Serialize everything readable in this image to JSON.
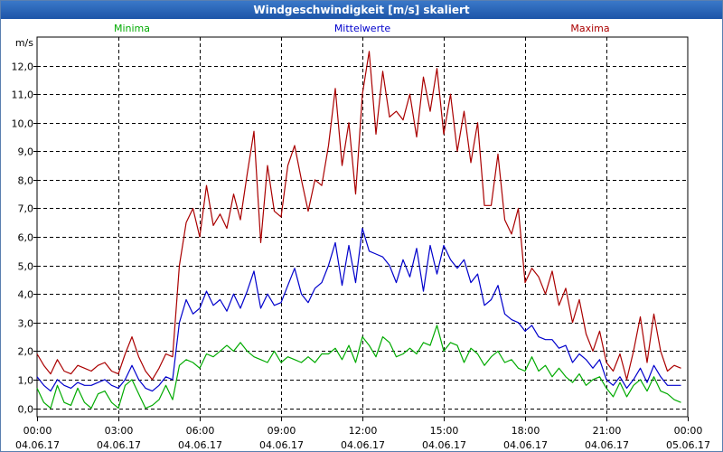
{
  "window": {
    "title": "Windgeschwindigkeit [m/s] skaliert"
  },
  "chart_data": {
    "type": "line",
    "title": "Windgeschwindigkeit [m/s] skaliert",
    "ylabel": "m/s",
    "ylim": [
      -0.3,
      13.0
    ],
    "xlim_hours": [
      0,
      24
    ],
    "y_ticks": [
      {
        "value": 0,
        "label": "0,0"
      },
      {
        "value": 1,
        "label": "1,0"
      },
      {
        "value": 2,
        "label": "2,0"
      },
      {
        "value": 3,
        "label": "3,0"
      },
      {
        "value": 4,
        "label": "4,0"
      },
      {
        "value": 5,
        "label": "5,0"
      },
      {
        "value": 6,
        "label": "6,0"
      },
      {
        "value": 7,
        "label": "7,0"
      },
      {
        "value": 8,
        "label": "8,0"
      },
      {
        "value": 9,
        "label": "9,0"
      },
      {
        "value": 10,
        "label": "10,0"
      },
      {
        "value": 11,
        "label": "11,0"
      },
      {
        "value": 12,
        "label": "12,0"
      }
    ],
    "x_ticks": [
      {
        "hour": 0,
        "time": "00:00",
        "date": "04.06.17"
      },
      {
        "hour": 3,
        "time": "03:00",
        "date": "04.06.17"
      },
      {
        "hour": 6,
        "time": "06:00",
        "date": "04.06.17"
      },
      {
        "hour": 9,
        "time": "09:00",
        "date": "04.06.17"
      },
      {
        "hour": 12,
        "time": "12:00",
        "date": "04.06.17"
      },
      {
        "hour": 15,
        "time": "15:00",
        "date": "04.06.17"
      },
      {
        "hour": 18,
        "time": "18:00",
        "date": "04.06.17"
      },
      {
        "hour": 21,
        "time": "21:00",
        "date": "04.06.17"
      },
      {
        "hour": 24,
        "time": "00:00",
        "date": "05.06.17"
      }
    ],
    "grid": true,
    "legend": [
      {
        "name": "Minima",
        "color": "#00aa00",
        "position": "left"
      },
      {
        "name": "Mittelwerte",
        "color": "#0000cc",
        "position": "center"
      },
      {
        "name": "Maxima",
        "color": "#aa0000",
        "position": "right"
      }
    ],
    "series": [
      {
        "name": "Maxima",
        "color": "#aa0000",
        "x": [
          0,
          0.25,
          0.5,
          0.75,
          1,
          1.25,
          1.5,
          1.75,
          2,
          2.25,
          2.5,
          2.75,
          3,
          3.25,
          3.5,
          3.75,
          4,
          4.25,
          4.5,
          4.75,
          5,
          5.25,
          5.5,
          5.75,
          6,
          6.25,
          6.5,
          6.75,
          7,
          7.25,
          7.5,
          7.75,
          8,
          8.25,
          8.5,
          8.75,
          9,
          9.25,
          9.5,
          9.75,
          10,
          10.25,
          10.5,
          10.75,
          11,
          11.25,
          11.5,
          11.75,
          12,
          12.25,
          12.5,
          12.75,
          13,
          13.25,
          13.5,
          13.75,
          14,
          14.25,
          14.5,
          14.75,
          15,
          15.25,
          15.5,
          15.75,
          16,
          16.25,
          16.5,
          16.75,
          17,
          17.25,
          17.5,
          17.75,
          18,
          18.25,
          18.5,
          18.75,
          19,
          19.25,
          19.5,
          19.75,
          20,
          20.25,
          20.5,
          20.75,
          21,
          21.25,
          21.5,
          21.75,
          22,
          22.25,
          22.5,
          22.75,
          23,
          23.25,
          23.5,
          23.75
        ],
        "values": [
          1.9,
          1.5,
          1.2,
          1.7,
          1.3,
          1.2,
          1.5,
          1.4,
          1.3,
          1.5,
          1.6,
          1.3,
          1.2,
          1.9,
          2.5,
          1.8,
          1.3,
          1.0,
          1.4,
          1.9,
          1.8,
          5.0,
          6.5,
          7.0,
          6.0,
          7.8,
          6.4,
          6.8,
          6.3,
          7.5,
          6.6,
          8.2,
          9.7,
          5.8,
          8.5,
          6.9,
          6.7,
          8.5,
          9.2,
          8.0,
          6.9,
          8.0,
          7.8,
          9.2,
          11.2,
          8.5,
          10.0,
          7.5,
          11.0,
          12.5,
          9.6,
          11.8,
          10.2,
          10.4,
          10.1,
          11.0,
          9.5,
          11.6,
          10.4,
          11.9,
          9.6,
          11.0,
          9.0,
          10.4,
          8.6,
          10.0,
          7.1,
          7.1,
          8.9,
          6.6,
          6.1,
          7.0,
          4.4,
          4.9,
          4.6,
          4.0,
          4.8,
          3.6,
          4.2,
          3.0,
          3.8,
          2.6,
          2.0,
          2.7,
          1.6,
          1.3,
          1.9,
          1.0,
          2.0,
          3.2,
          1.6,
          3.3,
          2.0,
          1.3,
          1.5,
          1.4
        ]
      },
      {
        "name": "Mittelwerte",
        "color": "#0000cc",
        "x": [
          0,
          0.25,
          0.5,
          0.75,
          1,
          1.25,
          1.5,
          1.75,
          2,
          2.25,
          2.5,
          2.75,
          3,
          3.25,
          3.5,
          3.75,
          4,
          4.25,
          4.5,
          4.75,
          5,
          5.25,
          5.5,
          5.75,
          6,
          6.25,
          6.5,
          6.75,
          7,
          7.25,
          7.5,
          7.75,
          8,
          8.25,
          8.5,
          8.75,
          9,
          9.25,
          9.5,
          9.75,
          10,
          10.25,
          10.5,
          10.75,
          11,
          11.25,
          11.5,
          11.75,
          12,
          12.25,
          12.5,
          12.75,
          13,
          13.25,
          13.5,
          13.75,
          14,
          14.25,
          14.5,
          14.75,
          15,
          15.25,
          15.5,
          15.75,
          16,
          16.25,
          16.5,
          16.75,
          17,
          17.25,
          17.5,
          17.75,
          18,
          18.25,
          18.5,
          18.75,
          19,
          19.25,
          19.5,
          19.75,
          20,
          20.25,
          20.5,
          20.75,
          21,
          21.25,
          21.5,
          21.75,
          22,
          22.25,
          22.5,
          22.75,
          23,
          23.25,
          23.5,
          23.75
        ],
        "values": [
          1.1,
          0.8,
          0.6,
          1.0,
          0.8,
          0.7,
          0.9,
          0.8,
          0.8,
          0.9,
          1.0,
          0.8,
          0.7,
          1.0,
          1.5,
          1.0,
          0.7,
          0.6,
          0.8,
          1.1,
          1.0,
          3.0,
          3.8,
          3.3,
          3.5,
          4.1,
          3.6,
          3.8,
          3.4,
          4.0,
          3.5,
          4.1,
          4.8,
          3.5,
          4.0,
          3.6,
          3.7,
          4.3,
          4.9,
          4.0,
          3.7,
          4.2,
          4.4,
          5.0,
          5.8,
          4.3,
          5.7,
          4.4,
          6.3,
          5.5,
          5.4,
          5.3,
          5.0,
          4.4,
          5.2,
          4.6,
          5.6,
          4.1,
          5.7,
          4.7,
          5.7,
          5.2,
          4.9,
          5.2,
          4.4,
          4.7,
          3.6,
          3.8,
          4.3,
          3.3,
          3.1,
          3.0,
          2.7,
          2.9,
          2.5,
          2.4,
          2.4,
          2.1,
          2.2,
          1.6,
          1.9,
          1.7,
          1.4,
          1.7,
          1.0,
          0.8,
          1.1,
          0.7,
          1.0,
          1.4,
          0.9,
          1.5,
          1.1,
          0.8,
          0.8,
          0.8
        ]
      },
      {
        "name": "Minima",
        "color": "#00aa00",
        "x": [
          0,
          0.25,
          0.5,
          0.75,
          1,
          1.25,
          1.5,
          1.75,
          2,
          2.25,
          2.5,
          2.75,
          3,
          3.25,
          3.5,
          3.75,
          4,
          4.25,
          4.5,
          4.75,
          5,
          5.25,
          5.5,
          5.75,
          6,
          6.25,
          6.5,
          6.75,
          7,
          7.25,
          7.5,
          7.75,
          8,
          8.25,
          8.5,
          8.75,
          9,
          9.25,
          9.5,
          9.75,
          10,
          10.25,
          10.5,
          10.75,
          11,
          11.25,
          11.5,
          11.75,
          12,
          12.25,
          12.5,
          12.75,
          13,
          13.25,
          13.5,
          13.75,
          14,
          14.25,
          14.5,
          14.75,
          15,
          15.25,
          15.5,
          15.75,
          16,
          16.25,
          16.5,
          16.75,
          17,
          17.25,
          17.5,
          17.75,
          18,
          18.25,
          18.5,
          18.75,
          19,
          19.25,
          19.5,
          19.75,
          20,
          20.25,
          20.5,
          20.75,
          21,
          21.25,
          21.5,
          21.75,
          22,
          22.25,
          22.5,
          22.75,
          23,
          23.25,
          23.5,
          23.75
        ],
        "values": [
          0.7,
          0.2,
          0.0,
          0.8,
          0.2,
          0.1,
          0.7,
          0.2,
          0.0,
          0.5,
          0.6,
          0.2,
          0.0,
          0.8,
          1.0,
          0.5,
          0.0,
          0.1,
          0.3,
          0.8,
          0.3,
          1.5,
          1.7,
          1.6,
          1.4,
          1.9,
          1.8,
          2.0,
          2.2,
          2.0,
          2.3,
          2.0,
          1.8,
          1.7,
          1.6,
          2.0,
          1.6,
          1.8,
          1.7,
          1.6,
          1.8,
          1.6,
          1.9,
          1.9,
          2.1,
          1.7,
          2.2,
          1.6,
          2.5,
          2.2,
          1.8,
          2.5,
          2.3,
          1.8,
          1.9,
          2.1,
          1.9,
          2.3,
          2.2,
          2.9,
          2.0,
          2.3,
          2.2,
          1.6,
          2.1,
          1.9,
          1.5,
          1.8,
          2.0,
          1.6,
          1.7,
          1.4,
          1.3,
          1.8,
          1.3,
          1.5,
          1.1,
          1.4,
          1.1,
          0.9,
          1.2,
          0.8,
          1.0,
          1.1,
          0.7,
          0.4,
          0.9,
          0.4,
          0.8,
          1.0,
          0.6,
          1.1,
          0.6,
          0.5,
          0.3,
          0.2
        ]
      }
    ]
  }
}
